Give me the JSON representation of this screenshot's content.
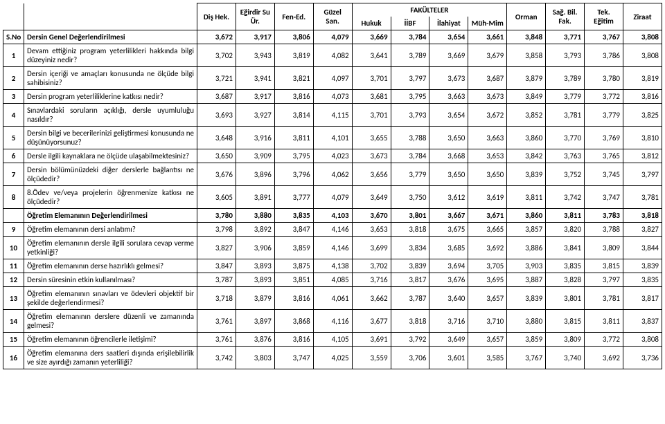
{
  "headers": {
    "group_title": "FAKÜLTELER",
    "sno": "S.No",
    "desc0": "Dersin Genel Değerlendirilmesi",
    "faculties": [
      "Diş Hek.",
      "Eğirdir Su Ür.",
      "Fen-Ed.",
      "Güzel San.",
      "Hukuk",
      "İİBF",
      "İlahiyat",
      "Müh-Mim",
      "Orman",
      "Sağ. Bil. Fak.",
      "Tek. Eğitim",
      "Ziraat"
    ]
  },
  "section1_totals": [
    "3,672",
    "3,917",
    "3,806",
    "4,079",
    "3,669",
    "3,784",
    "3,654",
    "3,661",
    "3,848",
    "3,771",
    "3,767",
    "3,808"
  ],
  "section1_rows": [
    {
      "n": "1",
      "d": "Devam ettiğiniz program yeterlilikleri hakkında bilgi düzeyiniz nedir?",
      "v": [
        "3,702",
        "3,943",
        "3,819",
        "4,082",
        "3,641",
        "3,789",
        "3,669",
        "3,679",
        "3,858",
        "3,793",
        "3,786",
        "3,808"
      ]
    },
    {
      "n": "2",
      "d": "Dersin içeriği ve amaçları konusunda ne ölçüde bilgi sahibisiniz?",
      "v": [
        "3,721",
        "3,941",
        "3,821",
        "4,097",
        "3,701",
        "3,797",
        "3,673",
        "3,687",
        "3,879",
        "3,789",
        "3,780",
        "3,819"
      ]
    },
    {
      "n": "3",
      "d": "Dersin program yeterliliklerine katkısı nedir?",
      "v": [
        "3,687",
        "3,917",
        "3,816",
        "4,073",
        "3,681",
        "3,795",
        "3,663",
        "3,673",
        "3,849",
        "3,779",
        "3,772",
        "3,816"
      ]
    },
    {
      "n": "4",
      "d": "Sınavlardaki soruların açıklığı, dersle uyumluluğu nasıldır?",
      "v": [
        "3,693",
        "3,927",
        "3,814",
        "4,115",
        "3,701",
        "3,793",
        "3,654",
        "3,672",
        "3,852",
        "3,781",
        "3,779",
        "3,825"
      ]
    },
    {
      "n": "5",
      "d": "Dersin bilgi ve becerilerinizi geliştirmesi konusunda ne düşünüyorsunuz?",
      "v": [
        "3,648",
        "3,916",
        "3,811",
        "4,101",
        "3,655",
        "3,788",
        "3,650",
        "3,663",
        "3,860",
        "3,770",
        "3,769",
        "3,810"
      ]
    },
    {
      "n": "6",
      "d": "Dersle ilgili kaynaklara ne ölçüde ulaşabilmektesiniz?",
      "v": [
        "3,650",
        "3,909",
        "3,795",
        "4,023",
        "3,673",
        "3,784",
        "3,668",
        "3,653",
        "3,842",
        "3,763",
        "3,765",
        "3,812"
      ]
    },
    {
      "n": "7",
      "d": "Dersin bölümünüzdeki diğer derslerle bağlantısı ne ölçüdedir?",
      "v": [
        "3,676",
        "3,896",
        "3,796",
        "4,062",
        "3,656",
        "3,779",
        "3,650",
        "3,650",
        "3,839",
        "3,752",
        "3,745",
        "3,797"
      ]
    },
    {
      "n": "8",
      "d": "8.Ödev ve/veya projelerin öğrenmenize katkısı ne ölçüdedir?",
      "v": [
        "3,605",
        "3,891",
        "3,777",
        "4,079",
        "3,649",
        "3,750",
        "3,612",
        "3,619",
        "3,811",
        "3,742",
        "3,747",
        "3,781"
      ]
    }
  ],
  "section2_title": "Öğretim Elemanının Değerlendirilmesi",
  "section2_totals": [
    "3,780",
    "3,880",
    "3,835",
    "4,103",
    "3,670",
    "3,801",
    "3,667",
    "3,671",
    "3,860",
    "3,811",
    "3,783",
    "3,818"
  ],
  "section2_rows": [
    {
      "n": "9",
      "d": "Öğretim elemanının dersi anlatımı?",
      "v": [
        "3,798",
        "3,892",
        "3,847",
        "4,146",
        "3,653",
        "3,818",
        "3,675",
        "3,665",
        "3,857",
        "3,820",
        "3,788",
        "3,827"
      ]
    },
    {
      "n": "10",
      "d": "Öğretim elemanının dersle ilgili sorulara cevap verme yetkinliği?",
      "v": [
        "3,827",
        "3,906",
        "3,859",
        "4,146",
        "3,699",
        "3,834",
        "3,685",
        "3,692",
        "3,886",
        "3,841",
        "3,809",
        "3,844"
      ]
    },
    {
      "n": "11",
      "d": "Öğretim elemanının derse hazırlıklı gelmesi?",
      "v": [
        "3,847",
        "3,893",
        "3,875",
        "4,138",
        "3,702",
        "3,839",
        "3,694",
        "3,705",
        "3,903",
        "3,835",
        "3,815",
        "3,839"
      ]
    },
    {
      "n": "12",
      "d": "Dersin süresinin etkin kullanılması?",
      "v": [
        "3,787",
        "3,893",
        "3,851",
        "4,085",
        "3,716",
        "3,817",
        "3,676",
        "3,695",
        "3,887",
        "3,828",
        "3,797",
        "3,835"
      ]
    },
    {
      "n": "13",
      "d": "Öğretim elemanının sınavları ve ödevleri objektif bir şekilde değerlendirmesi?",
      "v": [
        "3,718",
        "3,879",
        "3,816",
        "4,061",
        "3,662",
        "3,787",
        "3,640",
        "3,657",
        "3,839",
        "3,801",
        "3,781",
        "3,817"
      ]
    },
    {
      "n": "14",
      "d": "Öğretim elemanının derslere düzenli ve zamanında gelmesi?",
      "v": [
        "3,761",
        "3,897",
        "3,868",
        "4,116",
        "3,677",
        "3,818",
        "3,716",
        "3,710",
        "3,880",
        "3,815",
        "3,811",
        "3,837"
      ]
    },
    {
      "n": "15",
      "d": "Öğretim elemanının öğrencilerle iletişimi?",
      "v": [
        "3,761",
        "3,876",
        "3,816",
        "4,105",
        "3,691",
        "3,792",
        "3,649",
        "3,657",
        "3,859",
        "3,809",
        "3,772",
        "3,808"
      ]
    },
    {
      "n": "16",
      "d": "Öğretim elemanına ders saatleri dışında erişilebilirlik ve size ayırdığı zamanın yeterliliği?",
      "v": [
        "3,742",
        "3,803",
        "3,747",
        "4,025",
        "3,559",
        "3,706",
        "3,601",
        "3,585",
        "3,767",
        "3,740",
        "3,692",
        "3,736"
      ]
    }
  ],
  "style": {
    "bg": "#ffffff",
    "border": "#000000",
    "font_family": "Calibri, Arial, sans-serif",
    "font_size_pt": 8
  }
}
